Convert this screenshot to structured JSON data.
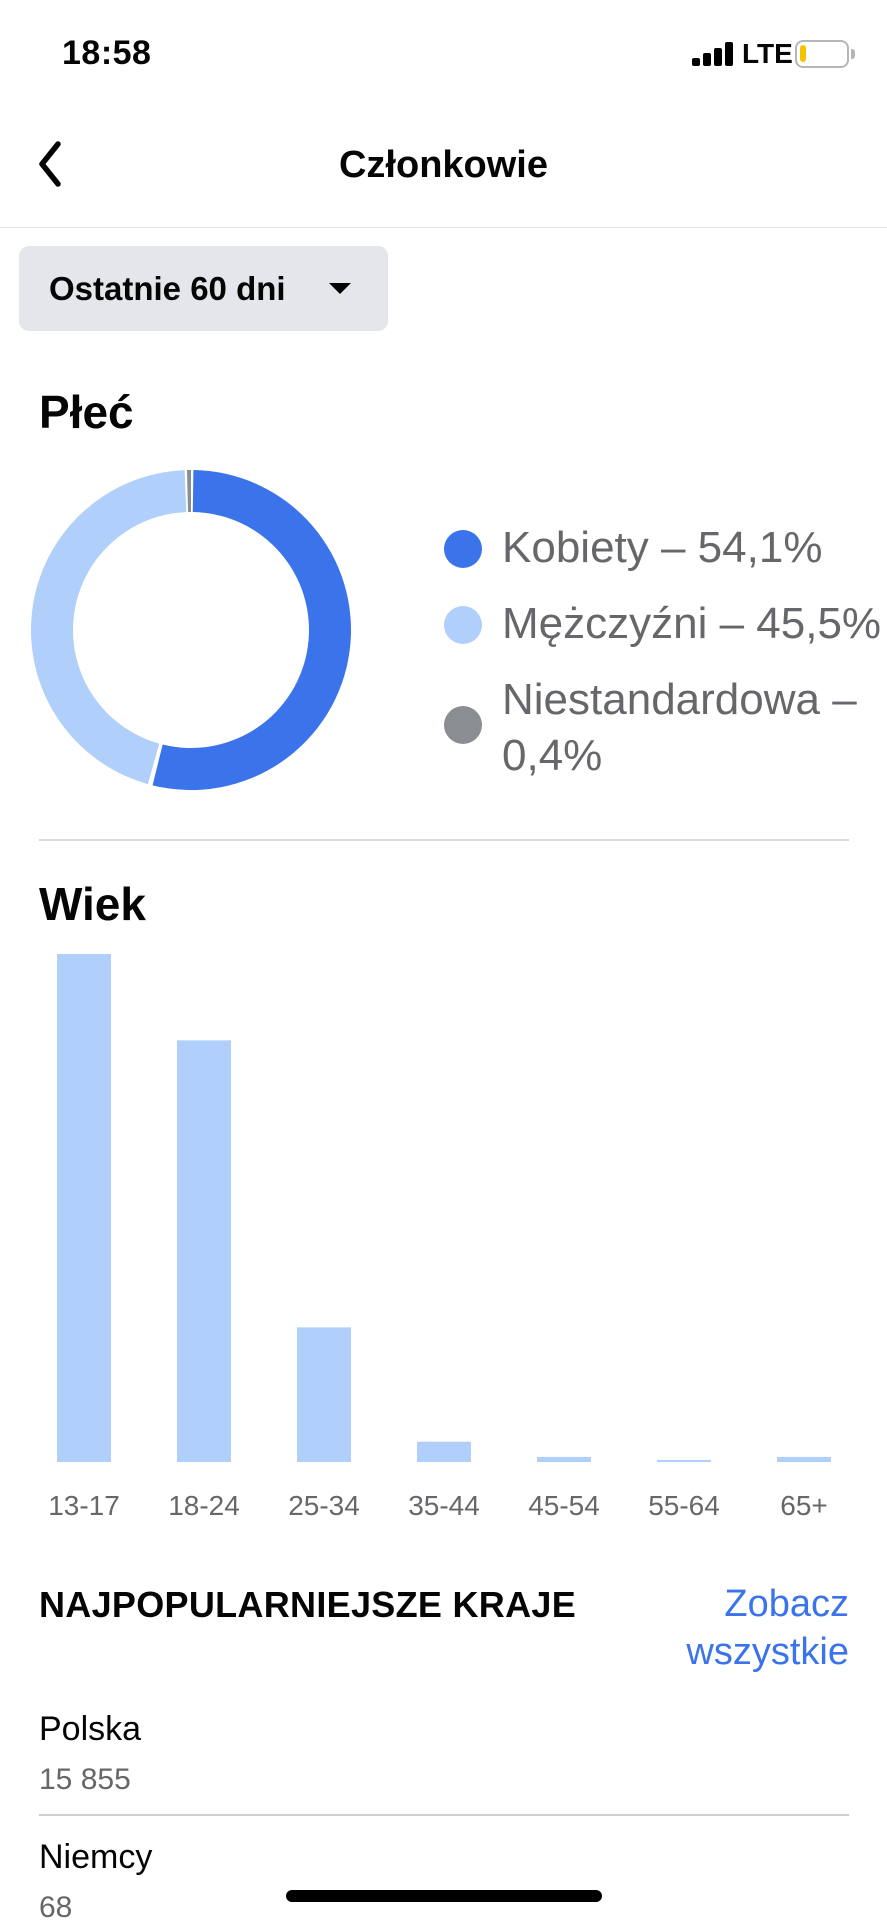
{
  "status_bar": {
    "time": "18:58",
    "network": "LTE"
  },
  "nav": {
    "title": "Członkowie"
  },
  "period": {
    "label": "Ostatnie 60 dni"
  },
  "gender": {
    "title": "Płeć",
    "legend": [
      {
        "label": "Kobiety – 54,1%",
        "color": "#3b73ea"
      },
      {
        "label": "Mężczyźni – 45,5%",
        "color": "#b0cffa"
      },
      {
        "label": "Niestandardowa – 0,4%",
        "color": "#8a8d91"
      }
    ]
  },
  "age": {
    "title": "Wiek"
  },
  "countries": {
    "title": "NAJPOPULARNIEJSZE KRAJE",
    "see_all": "Zobacz wszystkie",
    "items": [
      {
        "name": "Polska",
        "count": "15 855"
      },
      {
        "name": "Niemcy",
        "count": "68"
      }
    ]
  },
  "chart_data": [
    {
      "type": "pie",
      "categories": [
        "Kobiety",
        "Mężczyźni",
        "Niestandardowa"
      ],
      "values": [
        54.1,
        45.5,
        0.4
      ],
      "colors": [
        "#3b73ea",
        "#b0cffa",
        "#8a8d91"
      ],
      "style": "donut"
    },
    {
      "type": "bar",
      "title": "Wiek",
      "categories": [
        "13-17",
        "18-24",
        "25-34",
        "35-44",
        "45-54",
        "55-64",
        "65+"
      ],
      "values": [
        100,
        83,
        26.5,
        4,
        1,
        0.3,
        1
      ],
      "ylim": [
        0,
        100
      ],
      "color": "#b0cffa",
      "grid": false
    }
  ]
}
